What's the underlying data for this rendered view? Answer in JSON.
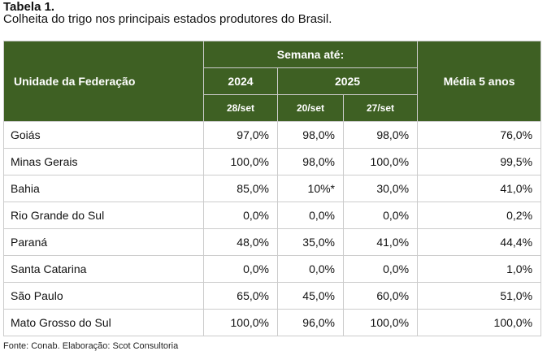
{
  "title": "Tabela 1.",
  "subtitle": "Colheita do trigo nos principais estados produtores do Brasil.",
  "header": {
    "uf": "Unidade da Federação",
    "semana": "Semana até:",
    "y2024": "2024",
    "y2025": "2025",
    "media": "Média 5 anos",
    "d1": "28/set",
    "d2": "20/set",
    "d3": "27/set"
  },
  "rows": [
    [
      "Goiás",
      "97,0%",
      "98,0%",
      "98,0%",
      "76,0%"
    ],
    [
      "Minas Gerais",
      "100,0%",
      "98,0%",
      "100,0%",
      "99,5%"
    ],
    [
      "Bahia",
      "85,0%",
      "10%*",
      "30,0%",
      "41,0%"
    ],
    [
      "Rio Grande do Sul",
      "0,0%",
      "0,0%",
      "0,0%",
      "0,2%"
    ],
    [
      "Paraná",
      "48,0%",
      "35,0%",
      "41,0%",
      "44,4%"
    ],
    [
      "Santa Catarina",
      "0,0%",
      "0,0%",
      "0,0%",
      "1,0%"
    ],
    [
      "São Paulo",
      "65,0%",
      "45,0%",
      "60,0%",
      "51,0%"
    ],
    [
      "Mato Grosso do Sul",
      "100,0%",
      "96,0%",
      "100,0%",
      "100,0%"
    ]
  ],
  "footer": "Fonte: Conab. Elaboração: Scot Consultoria"
}
